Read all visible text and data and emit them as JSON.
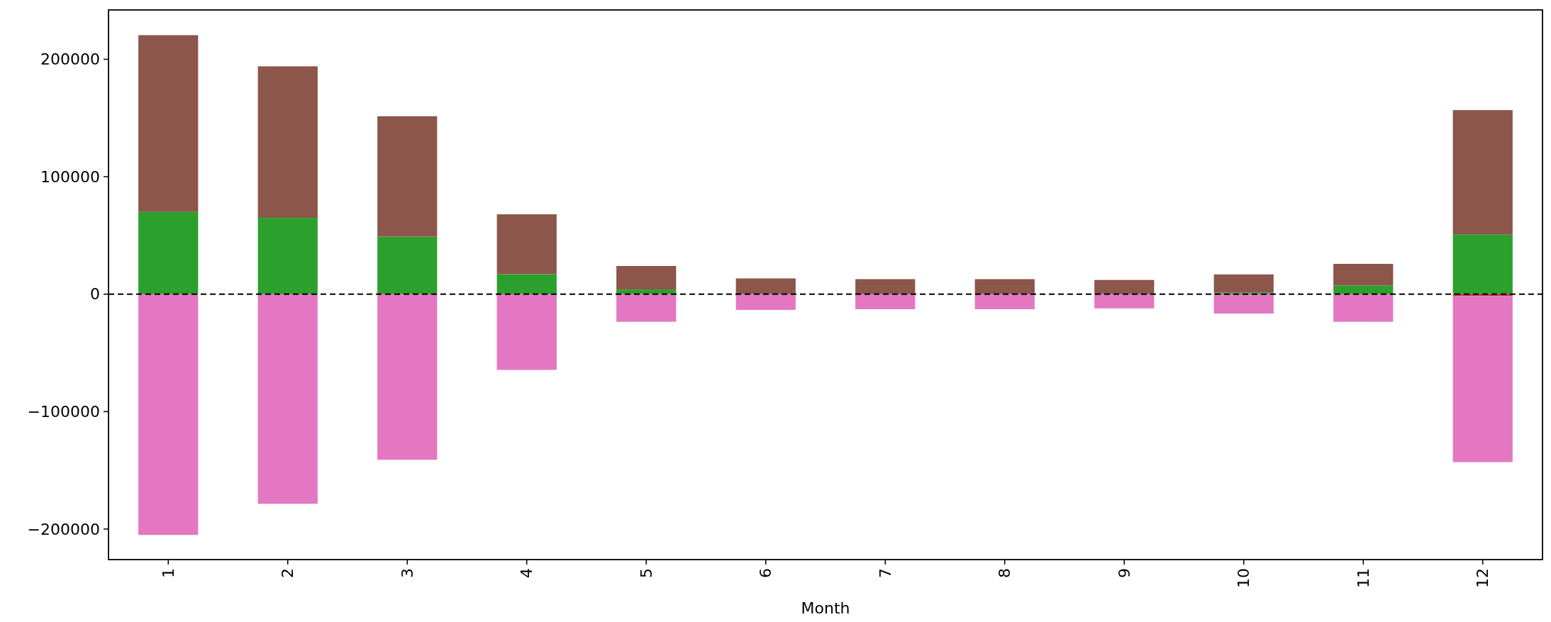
{
  "chart_data": {
    "type": "bar",
    "stacked": true,
    "xlabel": "Month",
    "categories": [
      "1",
      "2",
      "3",
      "4",
      "5",
      "6",
      "7",
      "8",
      "9",
      "10",
      "11",
      "12"
    ],
    "series": [
      {
        "color": "#2ca02c",
        "values": [
          70000,
          65000,
          49000,
          17000,
          4000,
          0,
          0,
          0,
          0,
          1300,
          7400,
          50700
        ]
      },
      {
        "color": "#8c564b",
        "values": [
          150500,
          129000,
          102500,
          51000,
          20000,
          13400,
          12800,
          12800,
          12100,
          15500,
          18400,
          106000
        ]
      },
      {
        "color": "#d62728",
        "values": [
          0,
          0,
          0,
          0,
          0,
          0,
          0,
          0,
          0,
          0,
          0,
          -1500
        ]
      },
      {
        "color": "#e377c2",
        "values": [
          -205000,
          -178500,
          -141000,
          -64500,
          -23500,
          -13400,
          -12800,
          -12800,
          -12100,
          -16500,
          -23500,
          -141500
        ]
      }
    ],
    "ylim": [
      -226000,
      242000
    ],
    "yticks": [
      {
        "value": -200000,
        "label": "−200000"
      },
      {
        "value": -100000,
        "label": "−100000"
      },
      0,
      100000,
      200000
    ],
    "ref_lines": [
      {
        "axis": "y",
        "value": 0,
        "color": "#000000",
        "line_style": "dashed"
      }
    ],
    "grid": false
  }
}
